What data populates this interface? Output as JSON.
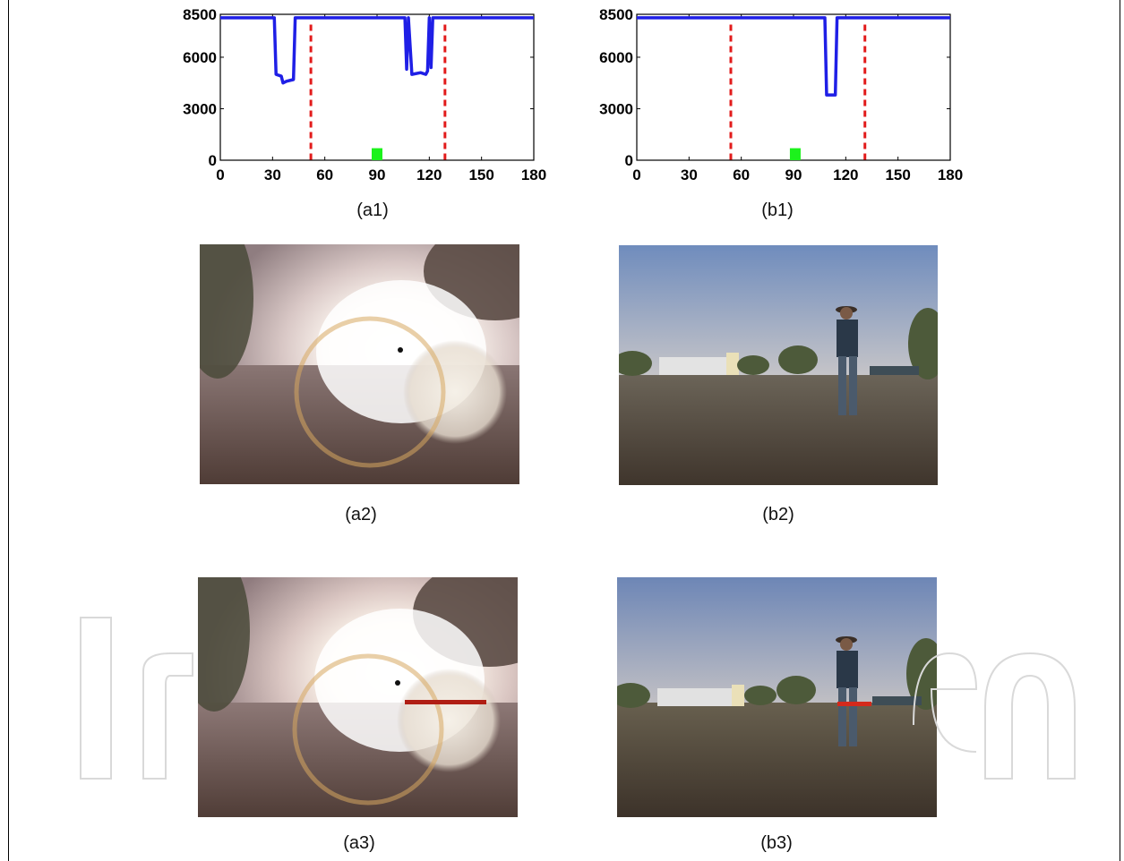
{
  "captions": {
    "a1": "(a1)",
    "b1": "(b1)",
    "a2": "(a2)",
    "b2": "(b2)",
    "a3": "(a3)",
    "b3": "(b3)"
  },
  "colors": {
    "line": "#1f1fe6",
    "threshold": "#e21b1b",
    "marker": "#1cf21c",
    "overlay_bar": "#b01e14"
  },
  "chart_data": [
    {
      "type": "line",
      "title": "",
      "xlabel": "",
      "ylabel": "",
      "xlim": [
        0,
        180
      ],
      "ylim": [
        0,
        8500
      ],
      "xticks": [
        0,
        30,
        60,
        90,
        120,
        150,
        180
      ],
      "yticks": [
        0,
        3000,
        6000,
        8500
      ],
      "series": [
        {
          "x": [
            0,
            30,
            31,
            32,
            35,
            36,
            38,
            42,
            43,
            45,
            105,
            106,
            107,
            108,
            110,
            115,
            118,
            119,
            120,
            121,
            122,
            123,
            180
          ],
          "y": [
            8300,
            8300,
            8300,
            5000,
            4900,
            4500,
            4600,
            4700,
            8300,
            8300,
            8300,
            8300,
            5300,
            8300,
            5000,
            5100,
            5000,
            5200,
            8300,
            5400,
            8300,
            8300,
            8300
          ]
        }
      ],
      "thresholds_x": [
        52,
        129
      ],
      "marker_x": 90
    },
    {
      "type": "line",
      "title": "",
      "xlabel": "",
      "ylabel": "",
      "xlim": [
        0,
        180
      ],
      "ylim": [
        0,
        8500
      ],
      "xticks": [
        0,
        30,
        60,
        90,
        120,
        150,
        180
      ],
      "yticks": [
        0,
        3000,
        6000,
        8500
      ],
      "series": [
        {
          "x": [
            0,
            107,
            108,
            109,
            114,
            115,
            116,
            180
          ],
          "y": [
            8300,
            8300,
            8300,
            3800,
            3800,
            8300,
            8300,
            8300
          ]
        }
      ],
      "thresholds_x": [
        54,
        131
      ],
      "marker_x": 91
    }
  ]
}
